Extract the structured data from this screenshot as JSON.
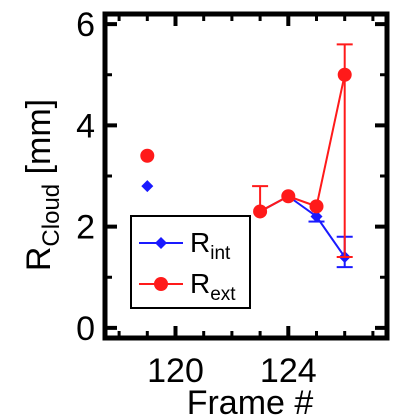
{
  "chart_data": {
    "type": "scatter",
    "xlabel": "Frame #",
    "ylabel_main": "R",
    "ylabel_sub": "Cloud",
    "ylabel_unit": " [mm]",
    "xlim": [
      117.5,
      127.5
    ],
    "ylim": [
      -0.2,
      6.2
    ],
    "x_ticks": [
      120,
      124
    ],
    "x_minor_ticks": [
      118,
      119,
      121,
      122,
      123,
      125,
      126,
      127
    ],
    "y_ticks": [
      0,
      2,
      4,
      6
    ],
    "y_minor_ticks": [
      1,
      3,
      5
    ],
    "grid": false,
    "legend_position": "bottom-left",
    "series": [
      {
        "key": "int",
        "legend_main": "R",
        "legend_sub": "int",
        "color": "#1a1aff",
        "marker": "diamond",
        "isolated": [
          {
            "x": 119,
            "y": 2.8
          }
        ],
        "connected": [
          {
            "x": 123,
            "y": 2.3,
            "err_lo": 0,
            "err_hi": 0
          },
          {
            "x": 124,
            "y": 2.6,
            "err_lo": 0,
            "err_hi": 0
          },
          {
            "x": 125,
            "y": 2.2,
            "err_lo": 0.1,
            "err_hi": 0
          },
          {
            "x": 126,
            "y": 1.4,
            "err_lo": 0.2,
            "err_hi": 0.4
          }
        ]
      },
      {
        "key": "ext",
        "legend_main": "R",
        "legend_sub": "ext",
        "color": "#ff1a1a",
        "marker": "circle",
        "isolated": [
          {
            "x": 119,
            "y": 3.4
          }
        ],
        "connected": [
          {
            "x": 123,
            "y": 2.3,
            "err_lo": 0,
            "err_hi": 0.5
          },
          {
            "x": 124,
            "y": 2.6,
            "err_lo": 0,
            "err_hi": 0
          },
          {
            "x": 125,
            "y": 2.4,
            "err_lo": 0,
            "err_hi": 0
          },
          {
            "x": 126,
            "y": 5.0,
            "err_lo": 3.6,
            "err_hi": 0.6
          }
        ]
      }
    ]
  }
}
